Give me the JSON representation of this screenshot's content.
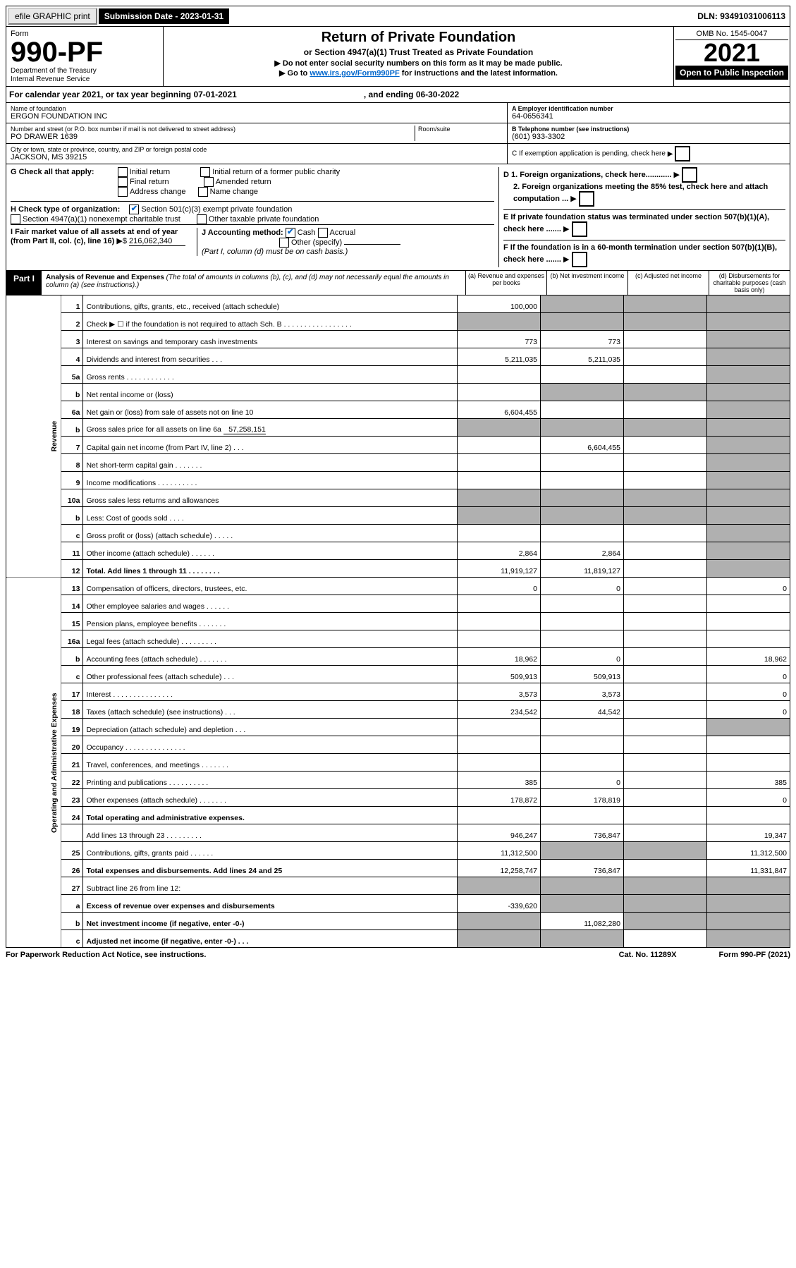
{
  "topbar": {
    "efile": "efile GRAPHIC print",
    "sub": "Submission Date - 2023-01-31",
    "dln": "DLN: 93491031006113"
  },
  "header": {
    "form_prefix": "Form",
    "form_no": "990-PF",
    "dept": "Department of the Treasury",
    "irs": "Internal Revenue Service",
    "title": "Return of Private Foundation",
    "subtitle": "or Section 4947(a)(1) Trust Treated as Private Foundation",
    "hint1": "▶ Do not enter social security numbers on this form as it may be made public.",
    "hint2_pre": "▶ Go to ",
    "hint2_link": "www.irs.gov/Form990PF",
    "hint2_post": " for instructions and the latest information.",
    "omb": "OMB No. 1545-0047",
    "year": "2021",
    "open": "Open to Public Inspection"
  },
  "cal": {
    "a": "For calendar year 2021, or tax year beginning 07-01-2021",
    "b": ", and ending 06-30-2022"
  },
  "id": {
    "name_lbl": "Name of foundation",
    "name": "ERGON FOUNDATION INC",
    "addr_lbl": "Number and street (or P.O. box number if mail is not delivered to street address)",
    "addr": "PO DRAWER 1639",
    "room_lbl": "Room/suite",
    "city_lbl": "City or town, state or province, country, and ZIP or foreign postal code",
    "city": "JACKSON, MS  39215",
    "a_lbl": "A Employer identification number",
    "a_val": "64-0656341",
    "b_lbl": "B Telephone number (see instructions)",
    "b_val": "(601) 933-3302",
    "c_lbl": "C If exemption application is pending, check here"
  },
  "g": {
    "lbl": "G Check all that apply:",
    "o1": "Initial return",
    "o2": "Final return",
    "o3": "Address change",
    "o4": "Initial return of a former public charity",
    "o5": "Amended return",
    "o6": "Name change"
  },
  "h": {
    "lbl": "H Check type of organization:",
    "o1": "Section 501(c)(3) exempt private foundation",
    "o2": "Section 4947(a)(1) nonexempt charitable trust",
    "o3": "Other taxable private foundation"
  },
  "i": {
    "lbl": "I Fair market value of all assets at end of year (from Part II, col. (c), line 16)",
    "val": "216,062,340"
  },
  "j": {
    "lbl": "J Accounting method:",
    "o1": "Cash",
    "o2": "Accrual",
    "o3": "Other (specify)",
    "note": "(Part I, column (d) must be on cash basis.)"
  },
  "d": {
    "l1": "D 1. Foreign organizations, check here............",
    "l2": "2. Foreign organizations meeting the 85% test, check here and attach computation ..."
  },
  "e": {
    "lbl": "E  If private foundation status was terminated under section 507(b)(1)(A), check here ......."
  },
  "f": {
    "lbl": "F  If the foundation is in a 60-month termination under section 507(b)(1)(B), check here ......."
  },
  "part1": {
    "tag": "Part I",
    "title": "Analysis of Revenue and Expenses",
    "note": "(The total of amounts in columns (b), (c), and (d) may not necessarily equal the amounts in column (a) (see instructions).)",
    "col_a": "(a)   Revenue and expenses per books",
    "col_b": "(b)   Net investment income",
    "col_c": "(c)  Adjusted net income",
    "col_d": "(d)  Disbursements for charitable purposes (cash basis only)"
  },
  "side": {
    "rev": "Revenue",
    "exp": "Operating and Administrative Expenses"
  },
  "rows": [
    {
      "n": "1",
      "d": "Contributions, gifts, grants, etc., received (attach schedule)",
      "a": "100,000"
    },
    {
      "n": "2",
      "d": "Check ▶ ☐ if the foundation is not required to attach Sch. B   .  .  .  .  .  .  .  .  .  .  .  .  .  .  .  .  ."
    },
    {
      "n": "3",
      "d": "Interest on savings and temporary cash investments",
      "a": "773",
      "b": "773"
    },
    {
      "n": "4",
      "d": "Dividends and interest from securities    .   .   .",
      "a": "5,211,035",
      "b": "5,211,035"
    },
    {
      "n": "5a",
      "d": "Gross rents    .   .   .   .   .   .   .   .   .   .   .   ."
    },
    {
      "n": "b",
      "d": "Net rental income or (loss)"
    },
    {
      "n": "6a",
      "d": "Net gain or (loss) from sale of assets not on line 10",
      "a": "6,604,455"
    },
    {
      "n": "b",
      "d": "Gross sales price for all assets on line 6a",
      "inline": "57,258,151"
    },
    {
      "n": "7",
      "d": "Capital gain net income (from Part IV, line 2)   .   .   .",
      "b": "6,604,455"
    },
    {
      "n": "8",
      "d": "Net short-term capital gain   .   .   .   .   .   .   ."
    },
    {
      "n": "9",
      "d": "Income modifications .   .   .   .   .   .   .   .   .   ."
    },
    {
      "n": "10a",
      "d": "Gross sales less returns and allowances"
    },
    {
      "n": "b",
      "d": "Less: Cost of goods sold    .   .   .   ."
    },
    {
      "n": "c",
      "d": "Gross profit or (loss) (attach schedule)    .   .   .   .   ."
    },
    {
      "n": "11",
      "d": "Other income (attach schedule)   .   .   .   .   .   .",
      "a": "2,864",
      "b": "2,864"
    },
    {
      "n": "12",
      "d": "Total. Add lines 1 through 11   .   .   .   .   .   .   .   .",
      "a": "11,919,127",
      "b": "11,819,127",
      "bold": true
    },
    {
      "n": "13",
      "d": "Compensation of officers, directors, trustees, etc.",
      "a": "0",
      "b": "0",
      "dd": "0"
    },
    {
      "n": "14",
      "d": "Other employee salaries and wages   .   .   .   .   .   ."
    },
    {
      "n": "15",
      "d": "Pension plans, employee benefits  .   .   .   .   .   .   ."
    },
    {
      "n": "16a",
      "d": "Legal fees (attach schedule) .   .   .   .   .   .   .   .   ."
    },
    {
      "n": "b",
      "d": "Accounting fees (attach schedule) .   .   .   .   .   .   .",
      "a": "18,962",
      "b": "0",
      "dd": "18,962"
    },
    {
      "n": "c",
      "d": "Other professional fees (attach schedule)    .   .   .",
      "a": "509,913",
      "b": "509,913",
      "dd": "0"
    },
    {
      "n": "17",
      "d": "Interest .   .   .   .   .   .   .   .   .   .   .   .   .   .   .",
      "a": "3,573",
      "b": "3,573",
      "dd": "0"
    },
    {
      "n": "18",
      "d": "Taxes (attach schedule) (see instructions)    .   .   .",
      "a": "234,542",
      "b": "44,542",
      "dd": "0"
    },
    {
      "n": "19",
      "d": "Depreciation (attach schedule) and depletion   .   .   ."
    },
    {
      "n": "20",
      "d": "Occupancy .   .   .   .   .   .   .   .   .   .   .   .   .   .   ."
    },
    {
      "n": "21",
      "d": "Travel, conferences, and meetings .   .   .   .   .   .   ."
    },
    {
      "n": "22",
      "d": "Printing and publications .   .   .   .   .   .   .   .   .   .",
      "a": "385",
      "b": "0",
      "dd": "385"
    },
    {
      "n": "23",
      "d": "Other expenses (attach schedule) .   .   .   .   .   .   .",
      "a": "178,872",
      "b": "178,819",
      "dd": "0"
    },
    {
      "n": "24",
      "d": "Total operating and administrative expenses.",
      "bold": true
    },
    {
      "n": "",
      "d": "Add lines 13 through 23   .   .   .   .   .   .   .   .   .",
      "a": "946,247",
      "b": "736,847",
      "dd": "19,347"
    },
    {
      "n": "25",
      "d": "Contributions, gifts, grants paid    .   .   .   .   .   .",
      "a": "11,312,500",
      "dd": "11,312,500"
    },
    {
      "n": "26",
      "d": "Total expenses and disbursements. Add lines 24 and 25",
      "a": "12,258,747",
      "b": "736,847",
      "dd": "11,331,847",
      "bold": true
    },
    {
      "n": "27",
      "d": "Subtract line 26 from line 12:"
    },
    {
      "n": "a",
      "d": "Excess of revenue over expenses and disbursements",
      "a": "-339,620",
      "bold": true
    },
    {
      "n": "b",
      "d": "Net investment income (if negative, enter -0-)",
      "b": "11,082,280",
      "bold": true
    },
    {
      "n": "c",
      "d": "Adjusted net income (if negative, enter -0-)   .   .   .",
      "bold": true
    }
  ],
  "grey": {
    "2": [
      "a",
      "b",
      "c",
      "d"
    ],
    "b": [
      "a",
      "b",
      "c",
      "d"
    ],
    "6a": [
      "d"
    ],
    "10a": [
      "a",
      "b",
      "c",
      "d"
    ],
    "12": [
      "d"
    ],
    "25": [
      "b",
      "c"
    ],
    "19": [
      "d"
    ],
    "27": [
      "a",
      "b",
      "c",
      "d"
    ]
  },
  "foot": {
    "l": "For Paperwork Reduction Act Notice, see instructions.",
    "c": "Cat. No. 11289X",
    "r": "Form 990-PF (2021)"
  }
}
